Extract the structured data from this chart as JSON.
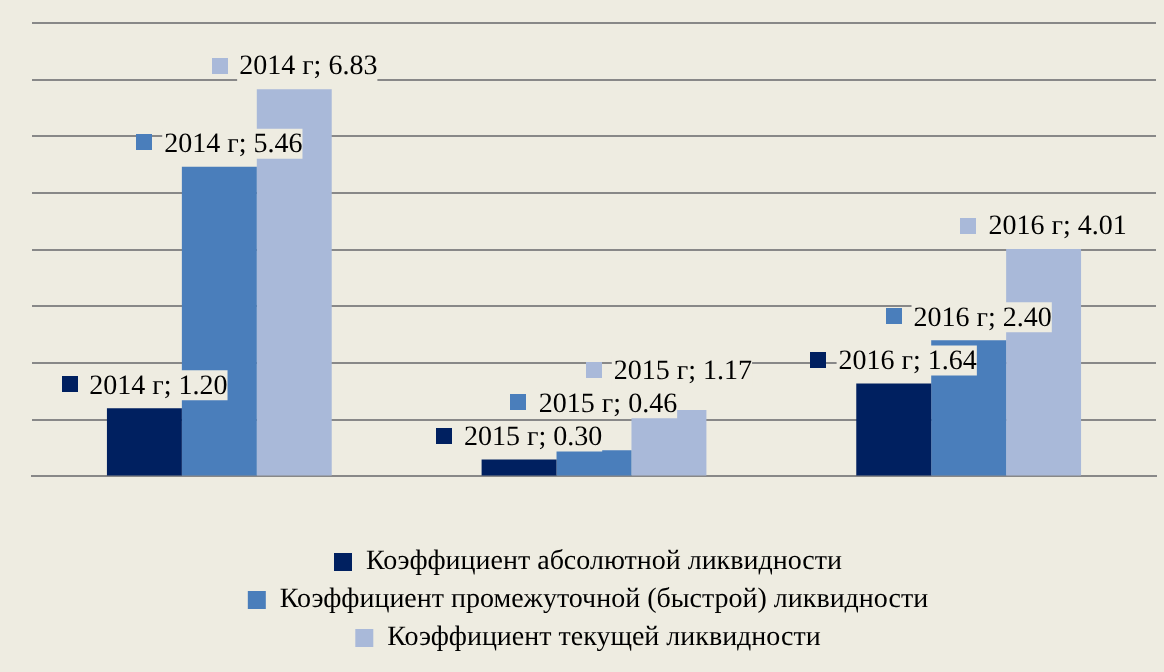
{
  "chart_data": {
    "type": "bar",
    "categories": [
      null,
      null,
      null
    ],
    "series": [
      {
        "name": "Коэффициент абсолютной ликвидности",
        "color": "#002060",
        "values": [
          1.2,
          0.3,
          1.64
        ],
        "value_labels": [
          "2014 г; 1.20",
          "2015 г; 0.30",
          "2016 г; 1.64"
        ]
      },
      {
        "name": "Коэффициент промежуточной (быстрой) ликвидности",
        "color": "#4a7ebb",
        "values": [
          5.46,
          0.46,
          2.4
        ],
        "value_labels": [
          "2014 г; 5.46",
          "2015 г; 0.46",
          "2016 г; 2.40"
        ]
      },
      {
        "name": "Коэффициент текущей ликвидности",
        "color": "#a9b9d9",
        "values": [
          6.83,
          1.17,
          4.01
        ],
        "value_labels": [
          "2014 г; 6.83",
          "2015 г; 1.17",
          "2016 г; 4.01"
        ]
      }
    ],
    "ylim": [
      0,
      8
    ],
    "yticks": [
      {
        "value": 0,
        "label": null
      },
      {
        "value": 1,
        "label": null
      },
      {
        "value": 2,
        "label": null
      },
      {
        "value": 3,
        "label": null
      },
      {
        "value": 4,
        "label": null
      },
      {
        "value": 5,
        "label": null
      },
      {
        "value": 6,
        "label": null
      },
      {
        "value": 7,
        "label": null
      },
      {
        "value": 8,
        "label": null
      }
    ],
    "grid": "y",
    "legend": "bottom"
  }
}
